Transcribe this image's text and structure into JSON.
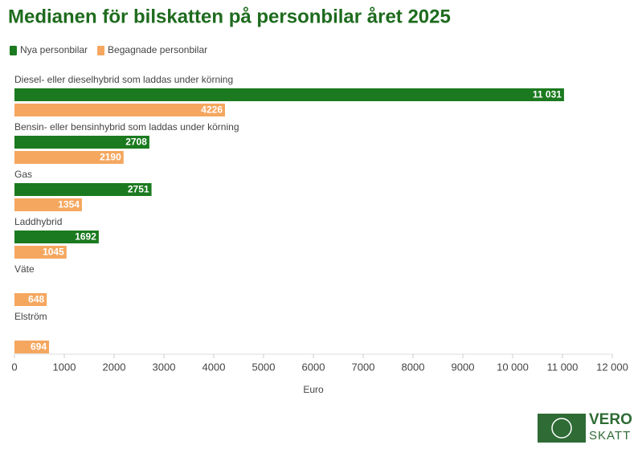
{
  "chart_data": {
    "type": "hbar",
    "title": "Medianen för bilskatten på personbilar året 2025",
    "categories": [
      "Diesel- eller dieselhybrid som laddas under körning",
      "Bensin- eller bensinhybrid som laddas under körning",
      "Gas",
      "Laddhybrid",
      "Väte",
      "Elström"
    ],
    "series": [
      {
        "name": "Nya personbilar",
        "color": "#1b7a1f",
        "values": [
          11031,
          2708,
          2751,
          1692,
          null,
          null
        ],
        "value_labels": [
          "11 031",
          "2708",
          "2751",
          "1692",
          null,
          null
        ]
      },
      {
        "name": "Begagnade personbilar",
        "color": "#f5a75f",
        "values": [
          4226,
          2190,
          1354,
          1045,
          648,
          694
        ]
      }
    ],
    "xlabel": "Euro",
    "xlim": [
      0,
      12000
    ],
    "xticks": [
      0,
      1000,
      2000,
      3000,
      4000,
      5000,
      6000,
      7000,
      8000,
      9000,
      {
        "value": 10000,
        "label": "10 000"
      },
      {
        "value": 11000,
        "label": "11 000"
      },
      {
        "value": 12000,
        "label": "12 000"
      }
    ],
    "legend": "top-left"
  },
  "logo": {
    "line1": "VERO",
    "line2": "SKATT"
  }
}
